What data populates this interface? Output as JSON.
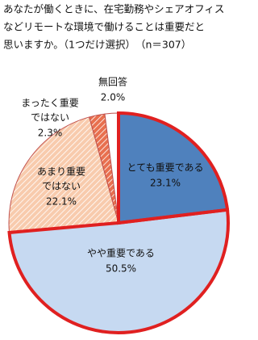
{
  "chart_data": {
    "type": "pie",
    "title": [
      "あなたが働くときに、在宅勤務やシェアオフィス",
      "などリモートな環境で働けることは重要だと",
      "思いますか。（1つだけ選択）　（n＝307）"
    ],
    "categories": [
      [
        "とても重要である"
      ],
      [
        "やや重要である"
      ],
      [
        "あまり重要",
        "ではない"
      ],
      [
        "まったく重要",
        "ではない"
      ],
      [
        "無回答"
      ]
    ],
    "values": [
      23.1,
      50.5,
      22.1,
      2.3,
      2.0
    ],
    "value_labels": [
      "23.1%",
      "50.5%",
      "22.1%",
      "2.3%",
      "2.0%"
    ],
    "colors": [
      "#4f81bd",
      "#c6d9f1",
      "#f8cbad",
      "#e8704f",
      "#ffffff"
    ],
    "hatched": [
      false,
      false,
      true,
      true,
      false
    ],
    "highlight_edge": [
      "#e02020",
      "#e02020",
      null,
      null,
      null
    ]
  }
}
